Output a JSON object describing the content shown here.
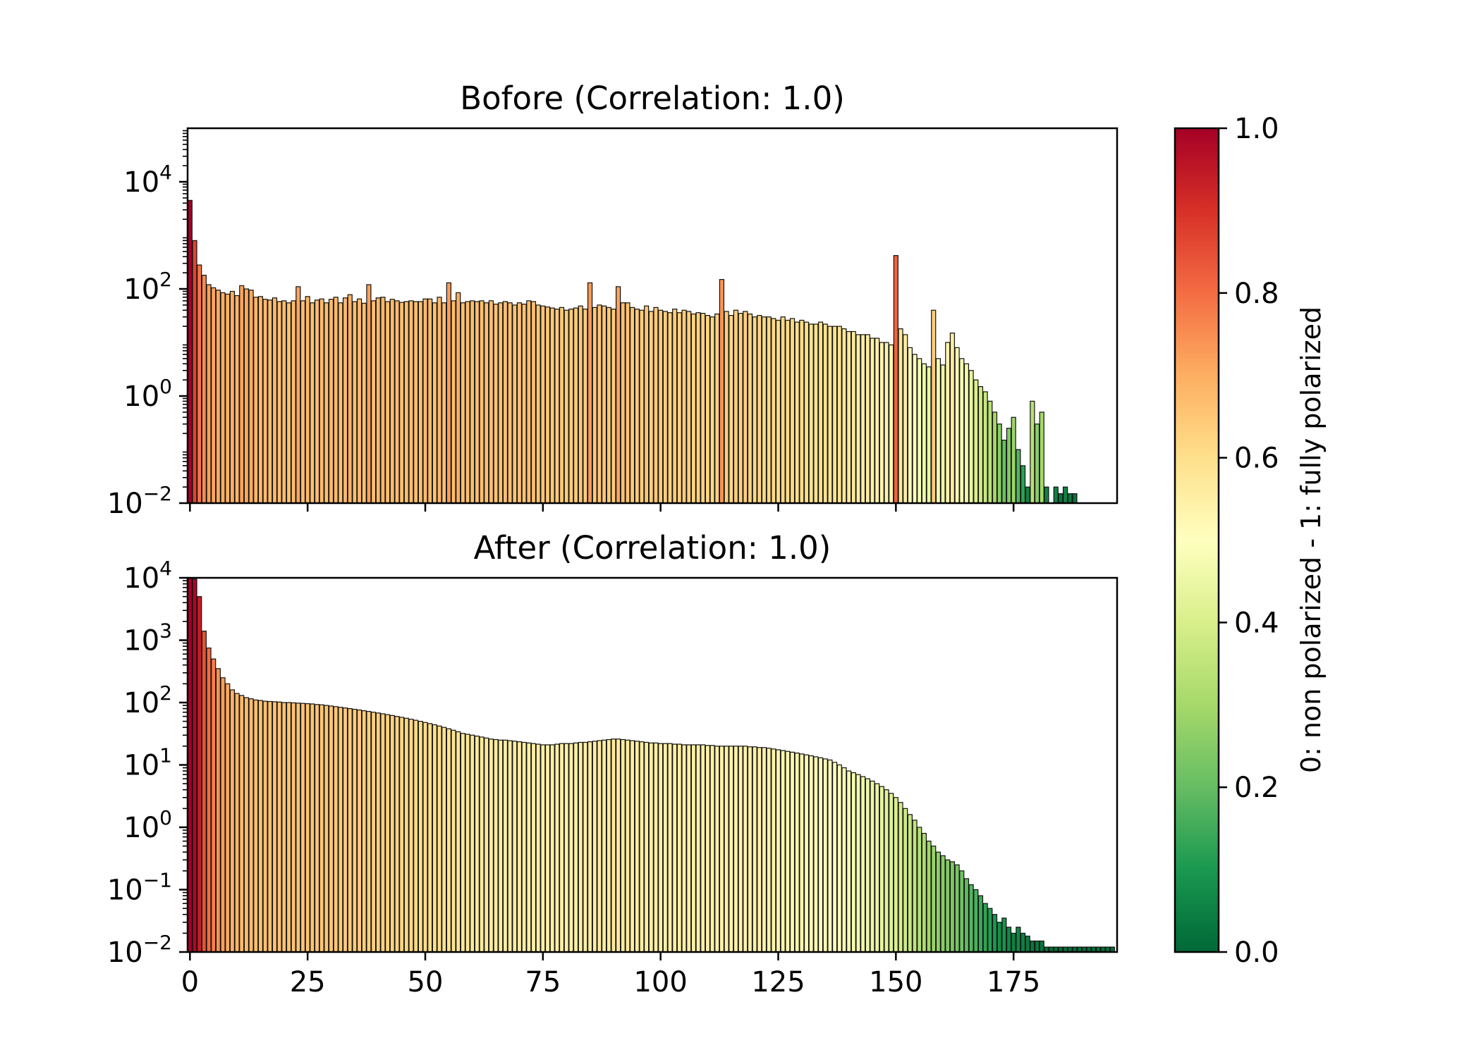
{
  "chart_data": [
    {
      "type": "bar",
      "title": "Bofore (Correlation: 1.0)",
      "xlabel": "",
      "ylabel": "",
      "yscale": "log",
      "xlim": [
        -0.5,
        197
      ],
      "ylim": [
        0.01,
        100000
      ],
      "x_ticks": [
        "0",
        "25",
        "50",
        "75",
        "100",
        "125",
        "150",
        "175"
      ],
      "x_tick_labels_visible": false,
      "y_ticks": [
        {
          "exp": "−2",
          "value": 0.01
        },
        {
          "exp": "0",
          "value": 1
        },
        {
          "exp": "2",
          "value": 100
        },
        {
          "exp": "4",
          "value": 10000
        }
      ],
      "grid": false,
      "x": "0..196",
      "values": [
        4500,
        800,
        280,
        180,
        120,
        105,
        95,
        85,
        80,
        90,
        75,
        115,
        100,
        95,
        70,
        72,
        64,
        62,
        68,
        58,
        60,
        55,
        60,
        110,
        60,
        72,
        55,
        62,
        65,
        55,
        64,
        70,
        55,
        68,
        78,
        58,
        65,
        54,
        120,
        60,
        68,
        70,
        58,
        64,
        60,
        56,
        58,
        60,
        58,
        58,
        65,
        65,
        55,
        70,
        55,
        130,
        60,
        85,
        55,
        58,
        60,
        58,
        60,
        55,
        60,
        52,
        55,
        58,
        55,
        50,
        55,
        52,
        60,
        58,
        50,
        48,
        46,
        44,
        42,
        45,
        40,
        42,
        44,
        48,
        42,
        130,
        45,
        50,
        48,
        45,
        42,
        110,
        55,
        55,
        45,
        42,
        40,
        48,
        38,
        45,
        40,
        38,
        36,
        42,
        36,
        40,
        38,
        34,
        36,
        35,
        32,
        30,
        34,
        150,
        38,
        32,
        40,
        35,
        38,
        34,
        30,
        32,
        30,
        30,
        28,
        26,
        30,
        26,
        28,
        24,
        26,
        24,
        22,
        22,
        24,
        22,
        20,
        20,
        20,
        18,
        16,
        16,
        14,
        14,
        14,
        12,
        12,
        10,
        10,
        9,
        420,
        18,
        14,
        8,
        6,
        5,
        4,
        3.5,
        40,
        5,
        3.8,
        10,
        15,
        8,
        5,
        4,
        3,
        2,
        1.5,
        1.2,
        0.8,
        0.5,
        0.3,
        0.15,
        0.25,
        0.4,
        0.1,
        0.05,
        0.02,
        0.8,
        0.3,
        0.5,
        0.02,
        0.01,
        0.02,
        0.015,
        0.02,
        0.015,
        0.015,
        0.01,
        0.01,
        0.01,
        0.01,
        0.01,
        0.01,
        0.01,
        0.01
      ]
    },
    {
      "type": "bar",
      "title": "After (Correlation: 1.0)",
      "xlabel": "",
      "ylabel": "",
      "yscale": "log",
      "xlim": [
        -0.5,
        197
      ],
      "ylim": [
        0.01,
        10000
      ],
      "x_ticks": [
        "0",
        "25",
        "50",
        "75",
        "100",
        "125",
        "150",
        "175"
      ],
      "x_tick_labels_visible": true,
      "y_ticks": [
        {
          "exp": "−2",
          "value": 0.01
        },
        {
          "exp": "−1",
          "value": 0.1
        },
        {
          "exp": "0",
          "value": 1
        },
        {
          "exp": "1",
          "value": 10
        },
        {
          "exp": "2",
          "value": 100
        },
        {
          "exp": "3",
          "value": 1000
        },
        {
          "exp": "4",
          "value": 10000
        }
      ],
      "grid": false,
      "x": "0..196",
      "values": [
        12000,
        9500,
        5000,
        1400,
        750,
        500,
        350,
        250,
        200,
        160,
        140,
        130,
        120,
        115,
        110,
        108,
        105,
        104,
        103,
        102,
        100,
        100,
        99,
        98,
        97,
        96,
        95,
        93,
        92,
        90,
        88,
        86,
        84,
        82,
        80,
        78,
        76,
        74,
        72,
        70,
        68,
        66,
        64,
        62,
        60,
        58,
        56,
        54,
        52,
        50,
        48,
        46,
        44,
        42,
        40,
        38,
        36,
        34,
        32,
        31,
        30,
        29,
        28,
        27,
        26,
        25.5,
        25,
        25,
        24.5,
        24,
        23.5,
        23,
        22.5,
        22,
        21.5,
        21,
        21,
        21,
        21.5,
        22,
        22,
        22,
        22.5,
        23,
        23,
        23.5,
        24,
        24.5,
        25,
        25.5,
        26,
        26,
        25.5,
        25,
        24.5,
        24,
        23.5,
        23,
        22.5,
        22.5,
        22,
        22,
        22,
        21.5,
        21.5,
        21,
        21,
        21,
        21,
        21,
        20.5,
        20.5,
        20,
        20,
        20,
        20,
        20,
        20,
        20,
        19.5,
        19.5,
        19,
        19,
        18.5,
        18,
        17.5,
        17,
        16.5,
        16,
        15.5,
        15,
        14.5,
        14,
        13.5,
        13,
        12.5,
        12,
        11,
        10,
        9,
        8,
        7.5,
        7,
        6.5,
        6,
        5.5,
        5,
        4.5,
        4,
        3.5,
        3,
        2.5,
        2,
        1.6,
        1.3,
        1,
        0.8,
        0.6,
        0.5,
        0.4,
        0.35,
        0.3,
        0.28,
        0.25,
        0.2,
        0.15,
        0.12,
        0.1,
        0.08,
        0.06,
        0.05,
        0.04,
        0.03,
        0.035,
        0.025,
        0.02,
        0.025,
        0.02,
        0.018,
        0.015,
        0.015,
        0.015,
        0.012,
        0.012,
        0.012,
        0.012,
        0.012,
        0.012,
        0.012,
        0.012,
        0.012,
        0.012,
        0.012,
        0.012,
        0.012,
        0.012,
        0.012
      ]
    }
  ],
  "colorbar": {
    "label": "0: non polarized - 1: fully polarized",
    "range": [
      0,
      1
    ],
    "tick_labels": [
      "0.0",
      "0.2",
      "0.4",
      "0.6",
      "0.8",
      "1.0"
    ],
    "colormap": "RdYlGn_r",
    "colors": [
      "#006837",
      "#1a9850",
      "#66bd63",
      "#a6d96a",
      "#d9ef8b",
      "#ffffbf",
      "#fee08b",
      "#fdae61",
      "#f46d43",
      "#d73027",
      "#a50026"
    ]
  }
}
